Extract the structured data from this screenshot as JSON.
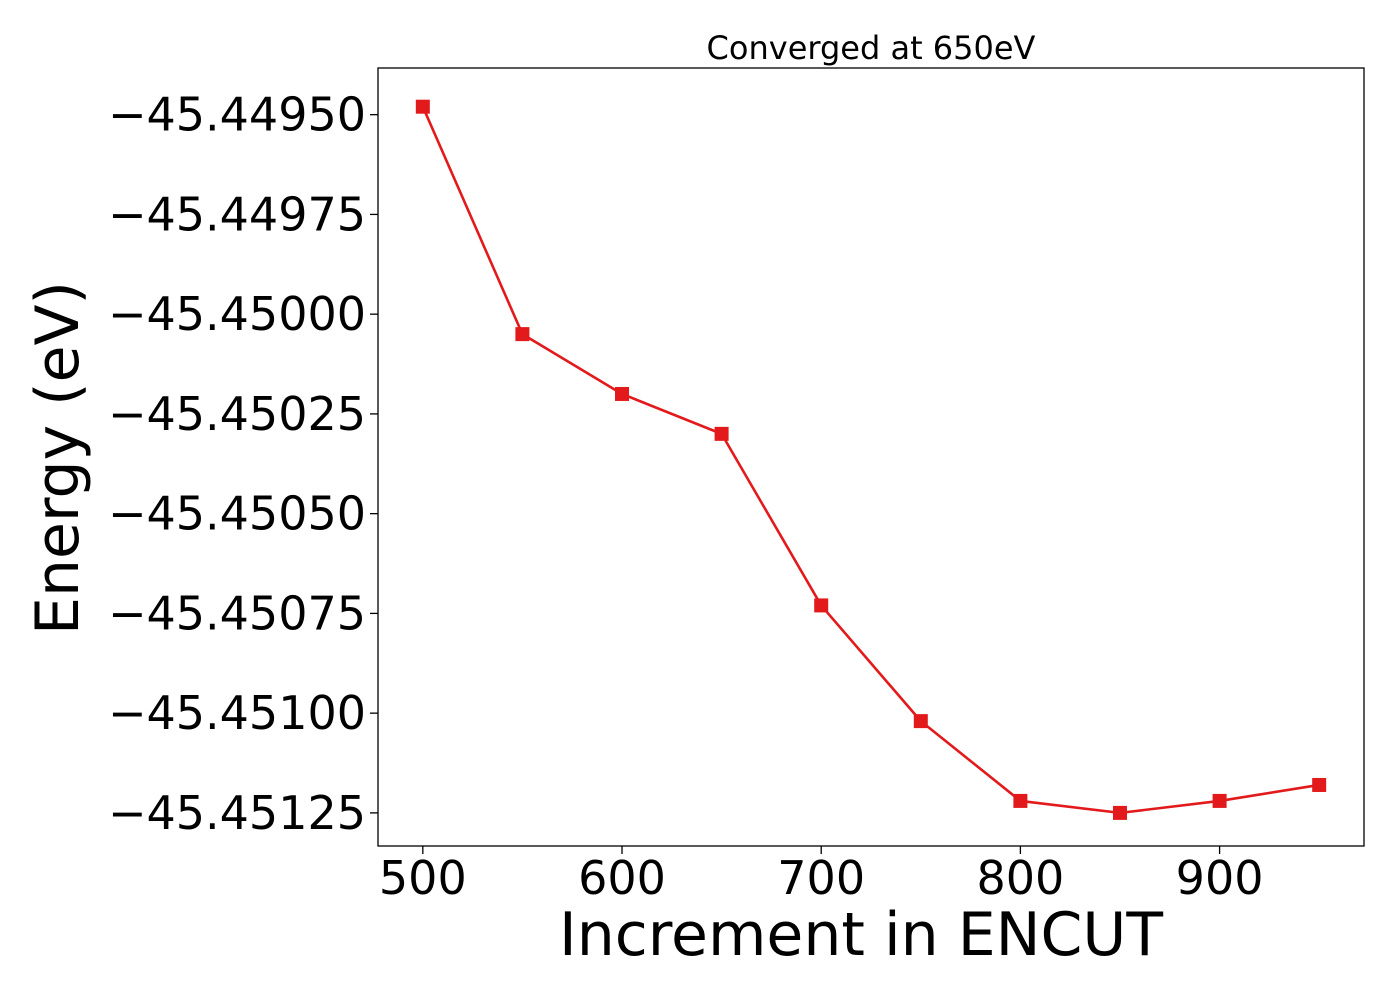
{
  "chart_data": {
    "type": "line",
    "title": "Converged at 650eV",
    "xlabel": "Increment in ENCUT",
    "ylabel": "Energy (eV)",
    "x": [
      500,
      550,
      600,
      650,
      700,
      750,
      800,
      850,
      900,
      950
    ],
    "series": [
      {
        "values": [
          -45.44948,
          -45.45005,
          -45.4502,
          -45.4503,
          -45.45073,
          -45.45102,
          -45.45122,
          -45.45125,
          -45.45122,
          -45.45118
        ],
        "color": "#e31a1c",
        "marker": "square"
      }
    ],
    "xlim": [
      477.5,
      972.5
    ],
    "ylim": [
      -45.451333,
      -45.449383
    ],
    "xticks": [
      500,
      600,
      700,
      800,
      900
    ],
    "xtick_labels": [
      "500",
      "600",
      "700",
      "800",
      "900"
    ],
    "yticks": [
      -45.4495,
      -45.44975,
      -45.45,
      -45.45025,
      -45.4505,
      -45.45075,
      -45.451,
      -45.45125
    ],
    "ytick_labels": [
      "−45.44950",
      "−45.44975",
      "−45.45000",
      "−45.45025",
      "−45.45050",
      "−45.45075",
      "−45.45100",
      "−45.45125"
    ],
    "grid": false,
    "legend": "none"
  }
}
